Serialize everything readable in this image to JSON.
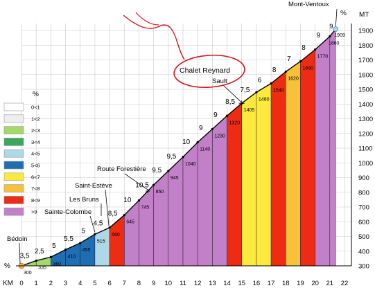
{
  "chart_data": {
    "type": "area",
    "title": "",
    "xlabel": "KM",
    "ylabel": "MT",
    "legend_title": "%",
    "xlim": [
      0,
      22
    ],
    "ylim": [
      300,
      1900
    ],
    "x_ticks": [
      0,
      1,
      2,
      3,
      4,
      5,
      6,
      7,
      8,
      9,
      10,
      11,
      12,
      13,
      14,
      15,
      16,
      17,
      18,
      19,
      20,
      21,
      22
    ],
    "y_ticks": [
      300,
      400,
      500,
      600,
      700,
      800,
      900,
      1000,
      1100,
      1200,
      1300,
      1400,
      1500,
      1600,
      1700,
      1800,
      1900
    ],
    "grid": true,
    "axis_corner_label": "%",
    "km_label": "KM",
    "mt_label": "MT",
    "top_percent_label": "%",
    "points": [
      {
        "km": 0,
        "alt": 300
      },
      {
        "km": 1,
        "alt": 335
      },
      {
        "km": 2,
        "alt": 360
      },
      {
        "km": 3,
        "alt": 410
      },
      {
        "km": 4,
        "alt": 455
      },
      {
        "km": 5,
        "alt": 515
      },
      {
        "km": 6,
        "alt": 560
      },
      {
        "km": 7,
        "alt": 645
      },
      {
        "km": 8,
        "alt": 745
      },
      {
        "km": 9,
        "alt": 850
      },
      {
        "km": 10,
        "alt": 945
      },
      {
        "km": 11,
        "alt": 1040
      },
      {
        "km": 12,
        "alt": 1140
      },
      {
        "km": 13,
        "alt": 1230
      },
      {
        "km": 14,
        "alt": 1320
      },
      {
        "km": 15,
        "alt": 1405
      },
      {
        "km": 16,
        "alt": 1480
      },
      {
        "km": 17,
        "alt": 1540
      },
      {
        "km": 18,
        "alt": 1620
      },
      {
        "km": 19,
        "alt": 1690
      },
      {
        "km": 20,
        "alt": 1770
      },
      {
        "km": 21,
        "alt": 1860
      },
      {
        "km": 21.4,
        "alt": 1909
      }
    ],
    "point_labels": [
      "300",
      "335",
      "360",
      "410",
      "455",
      "515",
      "560",
      "645",
      "745",
      "850",
      "945",
      "1040",
      "1140",
      "1230",
      "1320",
      "1405",
      "1480",
      "1540",
      "1620",
      "1690",
      "1770",
      "1860",
      "1909"
    ],
    "segments": [
      {
        "from": 0,
        "to": 1,
        "gradient": "3,5",
        "color": "#a6d96a"
      },
      {
        "from": 1,
        "to": 2,
        "gradient": "2,5",
        "color": "#a6d96a"
      },
      {
        "from": 2,
        "to": 3,
        "gradient": "5",
        "color": "#1f6eb4"
      },
      {
        "from": 3,
        "to": 4,
        "gradient": "5,5",
        "color": "#1f6eb4"
      },
      {
        "from": 4,
        "to": 5,
        "gradient": "5",
        "color": "#1f6eb4"
      },
      {
        "from": 5,
        "to": 6,
        "gradient": "4,5",
        "color": "#add8e6"
      },
      {
        "from": 6,
        "to": 7,
        "gradient": "8,5",
        "color": "#ee2c13"
      },
      {
        "from": 7,
        "to": 8,
        "gradient": "10",
        "color": "#c280c8"
      },
      {
        "from": 8,
        "to": 9,
        "gradient": "10,5",
        "color": "#c280c8"
      },
      {
        "from": 9,
        "to": 10,
        "gradient": "9,5",
        "color": "#c280c8"
      },
      {
        "from": 10,
        "to": 11,
        "gradient": "9,5",
        "color": "#c280c8"
      },
      {
        "from": 11,
        "to": 12,
        "gradient": "10",
        "color": "#c280c8"
      },
      {
        "from": 12,
        "to": 13,
        "gradient": "9",
        "color": "#c280c8"
      },
      {
        "from": 13,
        "to": 14,
        "gradient": "9",
        "color": "#c280c8"
      },
      {
        "from": 14,
        "to": 15,
        "gradient": "8,5",
        "color": "#ee2c13"
      },
      {
        "from": 15,
        "to": 16,
        "gradient": "7,5",
        "color": "#fbe93e"
      },
      {
        "from": 16,
        "to": 17,
        "gradient": "6",
        "color": "#fbe93e"
      },
      {
        "from": 17,
        "to": 18,
        "gradient": "8",
        "color": "#ee2c13"
      },
      {
        "from": 18,
        "to": 19,
        "gradient": "7",
        "color": "#f7c23a"
      },
      {
        "from": 19,
        "to": 20,
        "gradient": "8",
        "color": "#ee2c13"
      },
      {
        "from": 20,
        "to": 21,
        "gradient": "9",
        "color": "#c280c8"
      },
      {
        "from": 21,
        "to": 21.4,
        "gradient": "9",
        "color": "#c280c8"
      }
    ],
    "places": [
      {
        "name": "Bédoin",
        "km": 0
      },
      {
        "name": "Sainte-Colombe",
        "km": 5
      },
      {
        "name": "Les Bruns",
        "km": 5.5
      },
      {
        "name": "Saint-Estève",
        "km": 6
      },
      {
        "name": "Route Forestière",
        "km": 8.6
      },
      {
        "name": "Sault",
        "km": 15
      },
      {
        "name": "Chalet Reynard",
        "km": 15
      },
      {
        "name": "Mont-Ventoux",
        "km": 21.4
      }
    ],
    "legend": [
      {
        "label": "0<1",
        "color": "#ffffff"
      },
      {
        "label": "1<2",
        "color": "#eeeeee"
      },
      {
        "label": "2<3",
        "color": "#a6d96a"
      },
      {
        "label": "3<4",
        "color": "#3aa75a"
      },
      {
        "label": "4<5",
        "color": "#add8e6"
      },
      {
        "label": "5<6",
        "color": "#1f6eb4"
      },
      {
        "label": "6<7",
        "color": "#fbe93e"
      },
      {
        "label": "7<8",
        "color": "#f7c23a"
      },
      {
        "label": "8<9",
        "color": "#ee2c13"
      },
      {
        "label": ">9",
        "color": "#c280c8"
      }
    ]
  }
}
